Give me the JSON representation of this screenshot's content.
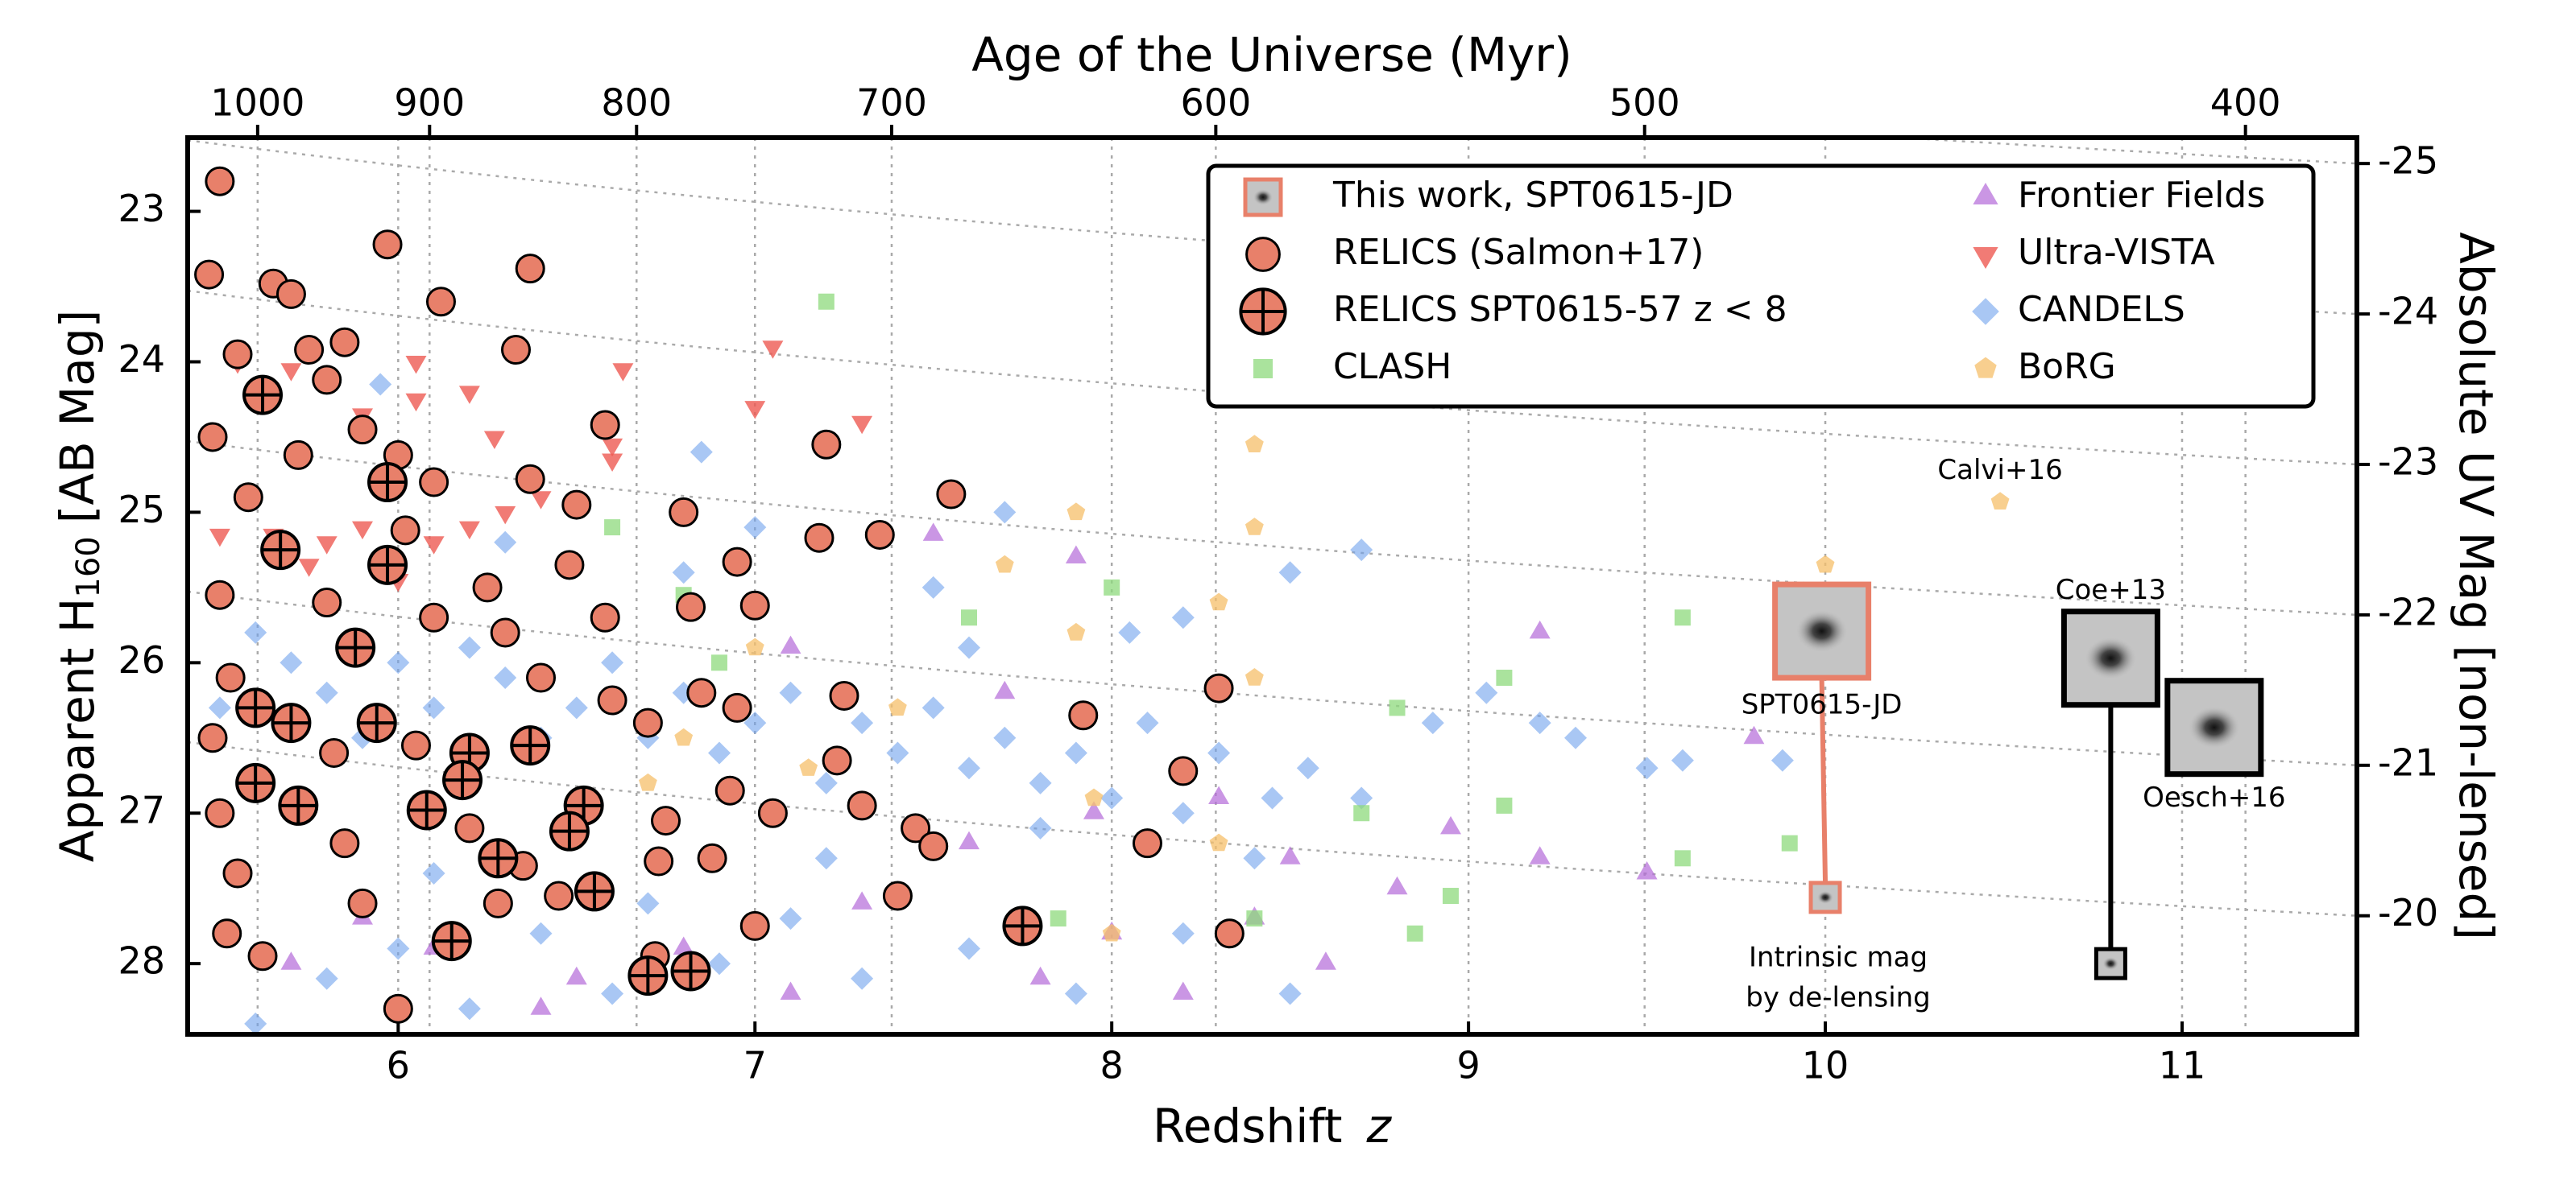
{
  "chart_data": {
    "type": "scatter",
    "xlabel": [
      "Redshift",
      "z"
    ],
    "ylabel": [
      "Apparent H",
      "160",
      "[AB Mag]"
    ],
    "x2label": "Age of the Universe (Myr)",
    "y2label": "Absolute UV Mag [non-lensed]",
    "xlim": [
      5.41,
      11.49
    ],
    "xticks": [
      6,
      7,
      8,
      9,
      10,
      11
    ],
    "ylim": [
      28.47,
      22.51
    ],
    "yticks": [
      23,
      24,
      25,
      26,
      27,
      28
    ],
    "x2ticks": [
      1000,
      900,
      800,
      700,
      600,
      500,
      400
    ],
    "y2ticks": [
      -25,
      -24,
      -23,
      -22,
      -21,
      -20
    ],
    "grid": true,
    "legend": "upper right",
    "series": [
      {
        "name": "This work, SPT0615-JD",
        "color": "#e8806a",
        "marker": "image",
        "x": [
          9.99,
          10.0
        ],
        "values": [
          25.79,
          27.56
        ]
      },
      {
        "name": "RELICS (Salmon+17)",
        "color": "#e8806a",
        "marker": "circle",
        "x": [
          5.5,
          5.47,
          5.65,
          5.7,
          5.97,
          6.37,
          6.12,
          5.55,
          5.75,
          5.85,
          6.33,
          5.8,
          5.48,
          5.72,
          5.9,
          6.58,
          7.2,
          6.0,
          6.1,
          5.58,
          6.37,
          6.5,
          6.8,
          7.18,
          7.35,
          7.55,
          6.02,
          6.25,
          6.48,
          6.95,
          5.5,
          5.8,
          6.1,
          6.3,
          6.58,
          7.0,
          6.82,
          5.53,
          6.4,
          6.6,
          6.85,
          7.25,
          7.92,
          8.3,
          5.48,
          5.82,
          6.05,
          6.7,
          6.95,
          7.23,
          8.2,
          5.5,
          5.85,
          6.2,
          6.35,
          6.75,
          7.05,
          7.45,
          7.5,
          8.1,
          5.55,
          5.9,
          6.28,
          6.45,
          6.73,
          6.88,
          7.4,
          5.52,
          5.62,
          6.0,
          6.72,
          8.33,
          7.0,
          6.93,
          7.3
        ],
        "values": [
          22.8,
          23.42,
          23.48,
          23.55,
          23.22,
          23.38,
          23.6,
          23.95,
          23.92,
          23.87,
          23.92,
          24.12,
          24.5,
          24.62,
          24.45,
          24.42,
          24.55,
          24.62,
          24.8,
          24.9,
          24.78,
          24.95,
          25.0,
          25.17,
          25.15,
          24.88,
          25.12,
          25.5,
          25.35,
          25.33,
          25.55,
          25.6,
          25.7,
          25.8,
          25.7,
          25.62,
          25.63,
          26.1,
          26.1,
          26.25,
          26.2,
          26.22,
          26.35,
          26.17,
          26.5,
          26.6,
          26.55,
          26.4,
          26.3,
          26.65,
          26.72,
          27.0,
          27.2,
          27.1,
          27.35,
          27.05,
          27.0,
          27.1,
          27.22,
          27.2,
          27.4,
          27.6,
          27.6,
          27.55,
          27.32,
          27.3,
          27.55,
          27.8,
          27.95,
          28.3,
          27.95,
          27.8,
          27.75,
          26.85,
          26.95
        ]
      },
      {
        "name": "RELICS SPT0615-57 z < 8",
        "color": "#e8806a",
        "marker": "circle-plus",
        "x": [
          5.62,
          5.97,
          5.67,
          5.97,
          5.88,
          5.6,
          5.7,
          5.94,
          6.2,
          6.37,
          5.6,
          5.72,
          6.08,
          6.18,
          6.52,
          6.48,
          6.28,
          6.55,
          6.15,
          6.7,
          6.82,
          7.75
        ],
        "values": [
          24.22,
          24.8,
          25.25,
          25.35,
          25.9,
          26.3,
          26.4,
          26.4,
          26.6,
          26.55,
          26.8,
          26.95,
          26.98,
          26.78,
          26.95,
          27.12,
          27.3,
          27.52,
          27.85,
          28.08,
          28.05,
          27.75
        ]
      },
      {
        "name": "CLASH",
        "color": "#8ed97c",
        "marker": "square",
        "x": [
          7.2,
          6.6,
          6.8,
          7.6,
          8.0,
          8.8,
          9.1,
          9.6,
          9.1,
          9.9,
          9.6,
          8.7,
          8.85,
          8.95,
          8.4,
          6.9,
          7.85
        ],
        "values": [
          23.6,
          25.1,
          25.55,
          25.7,
          25.5,
          26.3,
          26.1,
          25.7,
          26.95,
          27.2,
          27.3,
          27.0,
          27.8,
          27.55,
          27.7,
          26.0,
          27.7
        ]
      },
      {
        "name": "Frontier Fields",
        "color": "#b36ad9",
        "marker": "triangle-up",
        "x": [
          5.7,
          5.9,
          6.1,
          6.4,
          6.8,
          7.1,
          7.3,
          7.5,
          7.6,
          7.8,
          7.9,
          8.0,
          8.2,
          8.3,
          8.5,
          8.6,
          8.8,
          8.95,
          9.2,
          9.2,
          9.5,
          9.8,
          7.1,
          7.7,
          8.4,
          6.5,
          7.95
        ],
        "values": [
          28.0,
          27.7,
          27.9,
          28.3,
          27.9,
          28.2,
          27.6,
          25.15,
          27.2,
          28.1,
          25.3,
          27.8,
          28.2,
          26.9,
          27.3,
          28.0,
          27.5,
          27.1,
          25.8,
          27.3,
          27.4,
          26.5,
          25.9,
          26.2,
          27.7,
          28.1,
          27.0
        ]
      },
      {
        "name": "Ultra-VISTA",
        "color": "#ee5a52",
        "marker": "triangle-down",
        "x": [
          5.55,
          5.7,
          6.05,
          6.27,
          6.05,
          6.63,
          6.6,
          7.0,
          7.3,
          5.5,
          5.65,
          5.8,
          5.9,
          6.1,
          6.2,
          6.4,
          6.6,
          7.05,
          6.2,
          5.9,
          6.0,
          5.75,
          6.3
        ],
        "values": [
          24.0,
          24.05,
          24.25,
          24.5,
          24.0,
          24.05,
          24.65,
          24.3,
          24.4,
          25.15,
          25.15,
          25.2,
          25.1,
          25.2,
          25.1,
          24.9,
          24.55,
          23.9,
          24.2,
          24.35,
          25.45,
          25.35,
          25.0
        ]
      },
      {
        "name": "CANDELS",
        "color": "#6fa2ec",
        "marker": "diamond",
        "x": [
          5.5,
          5.6,
          5.7,
          5.8,
          5.9,
          6.0,
          6.1,
          6.2,
          6.3,
          6.4,
          6.5,
          6.6,
          6.7,
          6.8,
          6.9,
          7.0,
          7.1,
          7.2,
          7.3,
          7.4,
          7.5,
          7.6,
          7.7,
          7.8,
          7.9,
          8.0,
          8.1,
          8.2,
          8.3,
          8.45,
          8.55,
          8.7,
          8.9,
          9.05,
          9.2,
          9.3,
          9.5,
          9.6,
          9.88,
          5.6,
          5.8,
          6.0,
          6.2,
          6.4,
          6.6,
          6.9,
          7.1,
          7.3,
          7.6,
          7.9,
          8.2,
          8.5,
          6.3,
          6.8,
          7.0,
          7.5,
          7.7,
          8.2,
          8.7,
          5.95,
          6.85,
          7.6,
          8.05,
          8.5,
          6.1,
          6.7,
          7.2,
          7.8,
          8.4
        ],
        "values": [
          26.3,
          25.8,
          26.0,
          26.2,
          26.5,
          26.0,
          26.3,
          25.9,
          26.1,
          26.5,
          26.3,
          26.0,
          26.5,
          26.2,
          26.6,
          26.4,
          26.2,
          26.8,
          26.4,
          26.6,
          26.3,
          26.7,
          26.5,
          26.8,
          26.6,
          26.9,
          26.4,
          27.0,
          26.6,
          26.9,
          26.7,
          26.9,
          26.4,
          26.2,
          26.4,
          26.5,
          26.7,
          26.65,
          26.65,
          28.4,
          28.1,
          27.9,
          28.3,
          27.8,
          28.2,
          28.0,
          27.7,
          28.1,
          27.9,
          28.2,
          27.8,
          28.2,
          25.2,
          25.4,
          25.1,
          25.5,
          25.0,
          25.7,
          25.25,
          24.15,
          24.6,
          25.9,
          25.8,
          25.4,
          27.4,
          27.6,
          27.3,
          27.1,
          27.3
        ]
      },
      {
        "name": "BoRG",
        "color": "#f5bf6a",
        "marker": "pentagon",
        "x": [
          8.4,
          8.4,
          7.9,
          7.7,
          8.3,
          7.9,
          8.4,
          7.4,
          7.0,
          6.8,
          7.95,
          8.3,
          8.0,
          6.7,
          10.0,
          7.15,
          10.49
        ],
        "values": [
          24.55,
          25.1,
          25.0,
          25.35,
          25.6,
          25.8,
          26.1,
          26.3,
          25.9,
          26.5,
          26.9,
          27.2,
          27.8,
          26.8,
          25.35,
          26.7,
          24.93
        ]
      }
    ],
    "cutouts": [
      {
        "label": "Coe+13",
        "x": [
          10.8,
          10.8
        ],
        "values": [
          25.97,
          28.0
        ]
      },
      {
        "label": "Oesch+16",
        "x": [
          11.09
        ],
        "values": [
          26.43
        ]
      }
    ],
    "annotations": {
      "this_work": "SPT0615-JD",
      "delensing": [
        "Intrinsic mag",
        "by de-lensing"
      ],
      "calvi": "Calvi+16"
    }
  }
}
